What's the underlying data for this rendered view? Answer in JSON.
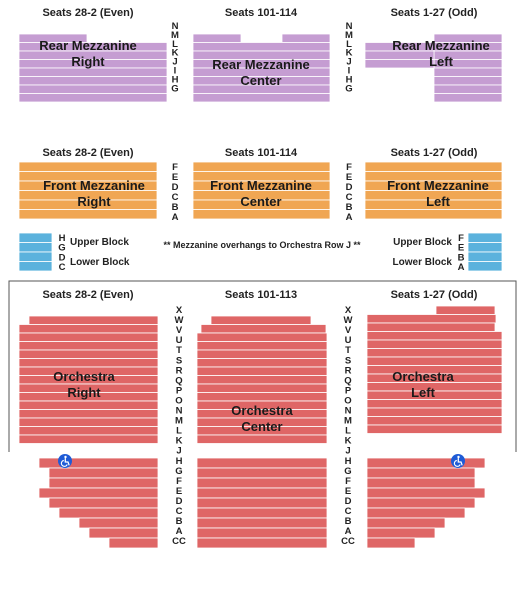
{
  "colors": {
    "rear": "#c59dd2",
    "front": "#f0a653",
    "box": "#5bb2dd",
    "orchestra": "#df6666",
    "rowLine": "#ffffff",
    "accessible": "#1f5bd6",
    "outline": "#555555"
  },
  "section_headers": {
    "even": "Seats 28-2 (Even)",
    "center_mezz": "Seats 101-114",
    "odd": "Seats 1-27 (Odd)",
    "center_orch": "Seats 101-113"
  },
  "rear_mezzanine": {
    "right": [
      "Rear Mezzanine",
      "Right"
    ],
    "center": [
      "Rear Mezzanine",
      "Center"
    ],
    "left": [
      "Rear Mezzanine",
      "Left"
    ],
    "rows": [
      "N",
      "M",
      "L",
      "K",
      "J",
      "I",
      "H",
      "G"
    ]
  },
  "front_mezzanine": {
    "right": [
      "Front Mezzanine",
      "Right"
    ],
    "center": [
      "Front Mezzanine",
      "Center"
    ],
    "left": [
      "Front Mezzanine",
      "Left"
    ],
    "rows": [
      "F",
      "E",
      "D",
      "C",
      "B",
      "A"
    ]
  },
  "boxes": {
    "left_rows": [
      "H",
      "G",
      "D",
      "C"
    ],
    "right_rows": [
      "F",
      "E",
      "B",
      "A"
    ],
    "upper": "Upper Block",
    "lower": "Lower Block",
    "note": "** Mezzanine overhangs to Orchestra Row J **"
  },
  "orchestra": {
    "right": [
      "Orchestra",
      "Right"
    ],
    "center": [
      "Orchestra",
      "Center"
    ],
    "left": [
      "Orchestra",
      "Left"
    ],
    "rows": [
      "X",
      "W",
      "V",
      "U",
      "T",
      "S",
      "R",
      "Q",
      "P",
      "O",
      "N",
      "M",
      "L",
      "K",
      "J",
      "H",
      "G",
      "F",
      "E",
      "D",
      "C",
      "B",
      "A",
      "CC"
    ]
  },
  "icons": {
    "accessible": "wheelchair-icon"
  }
}
